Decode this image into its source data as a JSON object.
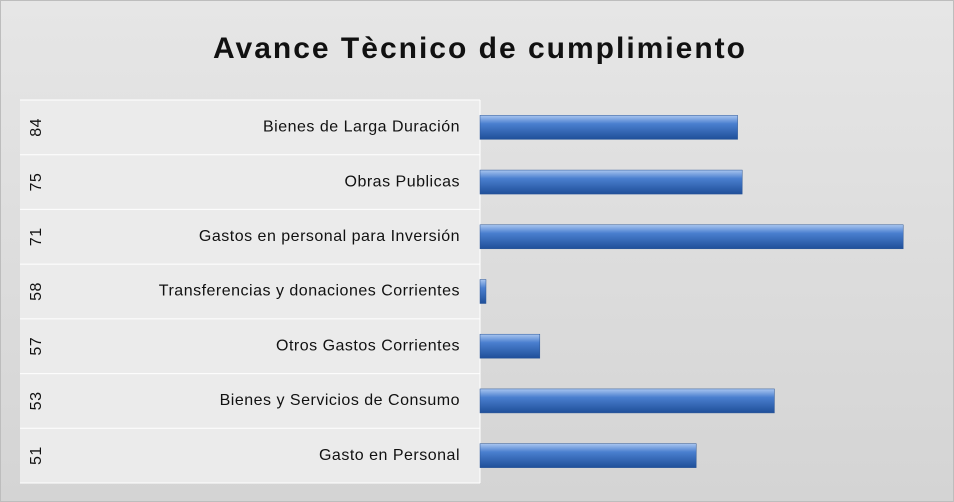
{
  "chart_data": {
    "type": "bar",
    "orientation": "horizontal",
    "title": "Avance Tècnico de cumplimiento",
    "category_codes": [
      "84",
      "75",
      "71",
      "58",
      "57",
      "53",
      "51"
    ],
    "categories": [
      "Bienes de Larga Duración",
      "Obras Publicas",
      "Gastos en personal para Inversión",
      "Transferencias y donaciones Corrientes",
      "Otros Gastos Corrientes",
      "Bienes y Servicios de Consumo",
      "Gasto en Personal"
    ],
    "values": [
      56,
      57,
      92,
      1.3,
      13,
      64,
      47
    ],
    "color": "#4a7fcf",
    "xlim": [
      0,
      100
    ]
  }
}
